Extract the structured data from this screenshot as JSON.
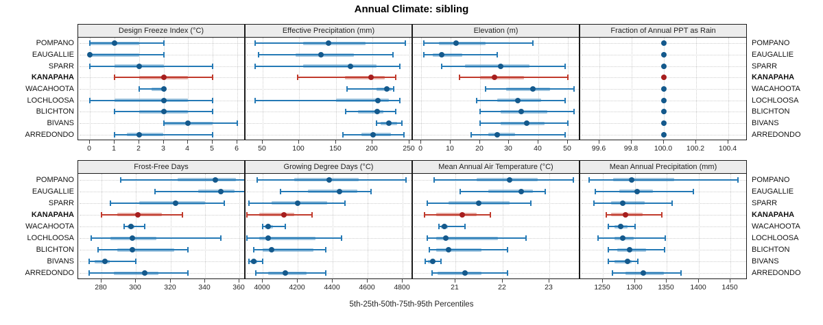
{
  "title": "Annual Climate: sibling",
  "caption": "5th-25th-50th-75th-95th Percentiles",
  "colors": {
    "blue_line": "#2479b5",
    "blue_dot": "#14598c",
    "red_line": "#c0392b",
    "red_dot": "#a61e1e",
    "grid": "#cdcdcd",
    "header_bg": "#ececec",
    "border": "#1a1a1a"
  },
  "chart_data": {
    "type": "interval-dotplot",
    "percentiles": [
      5,
      25,
      50,
      75,
      95
    ],
    "stations": [
      "POMPANO",
      "EAUGALLIE",
      "SPARR",
      "KANAPAHA",
      "WACAHOOTA",
      "LOCHLOOSA",
      "BLICHTON",
      "BIVANS",
      "ARREDONDO"
    ],
    "highlight_station": "KANAPAHA",
    "panels": [
      {
        "title": "Design Freeze Index (°C)",
        "row": 0,
        "col": 0,
        "xlim": [
          -0.48,
          6.34
        ],
        "ticks": [
          0,
          1,
          2,
          3,
          4,
          5,
          6
        ],
        "tick_labels": [
          "0",
          "1",
          "2",
          "3",
          "4",
          "5",
          "6"
        ],
        "values": [
          [
            0,
            0,
            1,
            2,
            3
          ],
          [
            0,
            0,
            0,
            2,
            3
          ],
          [
            0,
            1,
            2,
            3,
            5
          ],
          [
            1,
            2,
            3,
            4,
            5
          ],
          [
            2,
            2.5,
            3,
            3,
            3
          ],
          [
            0,
            1,
            3,
            4,
            5
          ],
          [
            1,
            2,
            3,
            4,
            5
          ],
          [
            3,
            3,
            4,
            5,
            6
          ],
          [
            1,
            1.5,
            2,
            3,
            5
          ]
        ]
      },
      {
        "title": "Effective Precipitation (mm)",
        "row": 0,
        "col": 1,
        "xlim": [
          27,
          255
        ],
        "ticks": [
          50,
          100,
          150,
          200,
          250
        ],
        "tick_labels": [
          "50",
          "100",
          "150",
          "200",
          "250"
        ],
        "values": [
          [
            40,
            105,
            140,
            190,
            245
          ],
          [
            45,
            95,
            130,
            175,
            228
          ],
          [
            40,
            105,
            170,
            205,
            237
          ],
          [
            98,
            162,
            198,
            217,
            232
          ],
          [
            165,
            205,
            219,
            226,
            229
          ],
          [
            40,
            150,
            207,
            222,
            237
          ],
          [
            163,
            180,
            206,
            215,
            232
          ],
          [
            205,
            211,
            222,
            234,
            240
          ],
          [
            160,
            185,
            201,
            225,
            243
          ]
        ]
      },
      {
        "title": "Elevation (m)",
        "row": 0,
        "col": 2,
        "xlim": [
          -2.8,
          54.2
        ],
        "ticks": [
          0,
          10,
          20,
          30,
          40,
          50
        ],
        "tick_labels": [
          "0",
          "10",
          "20",
          "30",
          "40",
          "50"
        ],
        "values": [
          [
            1,
            6,
            12,
            22,
            38
          ],
          [
            1,
            4,
            7,
            14,
            26
          ],
          [
            7,
            15,
            27,
            37,
            49
          ],
          [
            13,
            20,
            25,
            35,
            50
          ],
          [
            22,
            29,
            38,
            44,
            52
          ],
          [
            19,
            26,
            33,
            41,
            49
          ],
          [
            20,
            27,
            34,
            43,
            52
          ],
          [
            20,
            27,
            36,
            42,
            50
          ],
          [
            17,
            23,
            26,
            32,
            49
          ]
        ]
      },
      {
        "title": "Fraction of Annual PPT as Rain",
        "row": 0,
        "col": 3,
        "xlim": [
          99.48,
          100.52
        ],
        "ticks": [
          99.6,
          99.8,
          100.0,
          100.2,
          100.4
        ],
        "tick_labels": [
          "99.6",
          "99.8",
          "100.0",
          "100.2",
          "100.4"
        ],
        "values": [
          [
            100,
            100,
            100,
            100,
            100
          ],
          [
            100,
            100,
            100,
            100,
            100
          ],
          [
            100,
            100,
            100,
            100,
            100
          ],
          [
            100,
            100,
            100,
            100,
            100
          ],
          [
            100,
            100,
            100,
            100,
            100
          ],
          [
            100,
            100,
            100,
            100,
            100
          ],
          [
            100,
            100,
            100,
            100,
            100
          ],
          [
            100,
            100,
            100,
            100,
            100
          ],
          [
            100,
            100,
            100,
            100,
            100
          ]
        ]
      },
      {
        "title": "Frost-Free Days",
        "row": 1,
        "col": 0,
        "xlim": [
          266.5,
          363.5
        ],
        "ticks": [
          280,
          300,
          320,
          340,
          360
        ],
        "tick_labels": [
          "280",
          "300",
          "320",
          "340",
          "360"
        ],
        "values": [
          [
            291,
            324,
            346,
            358,
            365
          ],
          [
            311,
            336,
            349,
            357,
            365
          ],
          [
            285,
            302,
            323,
            340,
            351
          ],
          [
            280,
            289,
            301,
            315,
            327
          ],
          [
            293,
            295,
            297,
            299,
            305
          ],
          [
            274,
            285,
            298,
            312,
            349
          ],
          [
            278,
            289,
            298,
            322,
            330
          ],
          [
            273,
            276,
            282,
            285,
            300
          ],
          [
            273,
            287,
            305,
            313,
            330
          ]
        ]
      },
      {
        "title": "Growing Degree Days (°C)",
        "row": 1,
        "col": 1,
        "xlim": [
          3902,
          4858
        ],
        "ticks": [
          4000,
          4200,
          4400,
          4600,
          4800
        ],
        "tick_labels": [
          "4000",
          "4200",
          "4400",
          "4600",
          "4800"
        ],
        "values": [
          [
            3970,
            4180,
            4380,
            4550,
            4820
          ],
          [
            4100,
            4260,
            4440,
            4540,
            4620
          ],
          [
            3920,
            4050,
            4200,
            4370,
            4470
          ],
          [
            3910,
            3980,
            4120,
            4180,
            4280
          ],
          [
            4000,
            4010,
            4030,
            4060,
            4130
          ],
          [
            3910,
            3980,
            4030,
            4300,
            4450
          ],
          [
            3950,
            4000,
            4050,
            4290,
            4360
          ],
          [
            3920,
            3930,
            3950,
            3970,
            4000
          ],
          [
            3960,
            4030,
            4130,
            4250,
            4360
          ]
        ]
      },
      {
        "title": "Mean Annual Air Temperature (°C)",
        "row": 1,
        "col": 2,
        "xlim": [
          20.1,
          23.65
        ],
        "ticks": [
          21,
          22,
          23
        ],
        "tick_labels": [
          "21",
          "22",
          "23"
        ],
        "values": [
          [
            20.55,
            21.45,
            22.15,
            22.75,
            23.5
          ],
          [
            21.1,
            21.7,
            22.4,
            22.65,
            22.9
          ],
          [
            20.4,
            20.85,
            21.5,
            22.15,
            22.6
          ],
          [
            20.35,
            20.6,
            21.15,
            21.45,
            21.75
          ],
          [
            20.65,
            20.7,
            20.77,
            20.85,
            21.2
          ],
          [
            20.4,
            20.6,
            20.8,
            21.9,
            22.5
          ],
          [
            20.45,
            20.6,
            20.85,
            21.55,
            22.1
          ],
          [
            20.36,
            20.42,
            20.52,
            20.55,
            20.7
          ],
          [
            20.5,
            20.62,
            21.2,
            21.55,
            22.1
          ]
        ]
      },
      {
        "title": "Mean Annual Precipitation (mm)",
        "row": 1,
        "col": 3,
        "xlim": [
          1214,
          1477
        ],
        "ticks": [
          1250,
          1300,
          1350,
          1400,
          1450
        ],
        "tick_labels": [
          "1250",
          "1300",
          "1350",
          "1400",
          "1450"
        ],
        "values": [
          [
            1228,
            1266,
            1295,
            1362,
            1462
          ],
          [
            1238,
            1275,
            1303,
            1328,
            1392
          ],
          [
            1235,
            1262,
            1281,
            1315,
            1358
          ],
          [
            1255,
            1262,
            1285,
            1312,
            1342
          ],
          [
            1258,
            1268,
            1278,
            1288,
            1300
          ],
          [
            1242,
            1268,
            1281,
            1298,
            1348
          ],
          [
            1258,
            1272,
            1292,
            1318,
            1346
          ],
          [
            1258,
            1268,
            1288,
            1295,
            1305
          ],
          [
            1265,
            1285,
            1313,
            1345,
            1372
          ]
        ]
      }
    ]
  }
}
